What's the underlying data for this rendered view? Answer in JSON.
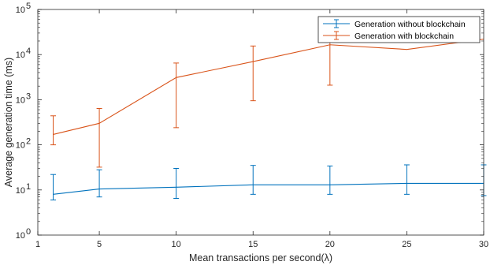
{
  "chart_data": {
    "type": "line",
    "xlabel": "Mean transactions per second(λ)",
    "ylabel": "Average generation time (ms)",
    "xlim": [
      1,
      30
    ],
    "ylim": [
      1,
      100000
    ],
    "yscale": "log",
    "grid": false,
    "legend_position": "top-right",
    "x_ticks": [
      {
        "value": 1,
        "label": "1"
      },
      {
        "value": 5,
        "label": "5"
      },
      {
        "value": 10,
        "label": "10"
      },
      {
        "value": 15,
        "label": "15"
      },
      {
        "value": 20,
        "label": "20"
      },
      {
        "value": 25,
        "label": "25"
      },
      {
        "value": 30,
        "label": "30"
      }
    ],
    "y_ticks": [
      {
        "value": 1,
        "base": "10",
        "exp": "0"
      },
      {
        "value": 10,
        "base": "10",
        "exp": "1"
      },
      {
        "value": 100,
        "base": "10",
        "exp": "2"
      },
      {
        "value": 1000,
        "base": "10",
        "exp": "3"
      },
      {
        "value": 10000,
        "base": "10",
        "exp": "4"
      },
      {
        "value": 100000,
        "base": "10",
        "exp": "5"
      }
    ],
    "series": [
      {
        "name": "Generation without blockchain",
        "color": "#0072BD",
        "x": [
          2,
          5,
          10,
          15,
          20,
          25,
          30
        ],
        "y": [
          8,
          10.5,
          11.5,
          13,
          13,
          14,
          14
        ],
        "err_low": [
          6,
          7,
          6.5,
          8,
          8,
          8,
          7.5
        ],
        "err_high": [
          22,
          28,
          30,
          35,
          34,
          36,
          36
        ]
      },
      {
        "name": "Generation with blockchain",
        "color": "#D95319",
        "x": [
          2,
          5,
          10,
          15,
          20,
          25,
          30
        ],
        "y": [
          170,
          300,
          3100,
          7000,
          16500,
          13000,
          22000
        ],
        "err_low": [
          100,
          32,
          240,
          950,
          2100,
          null,
          null
        ],
        "err_high": [
          440,
          640,
          6500,
          15500,
          30000,
          null,
          null
        ]
      }
    ]
  }
}
